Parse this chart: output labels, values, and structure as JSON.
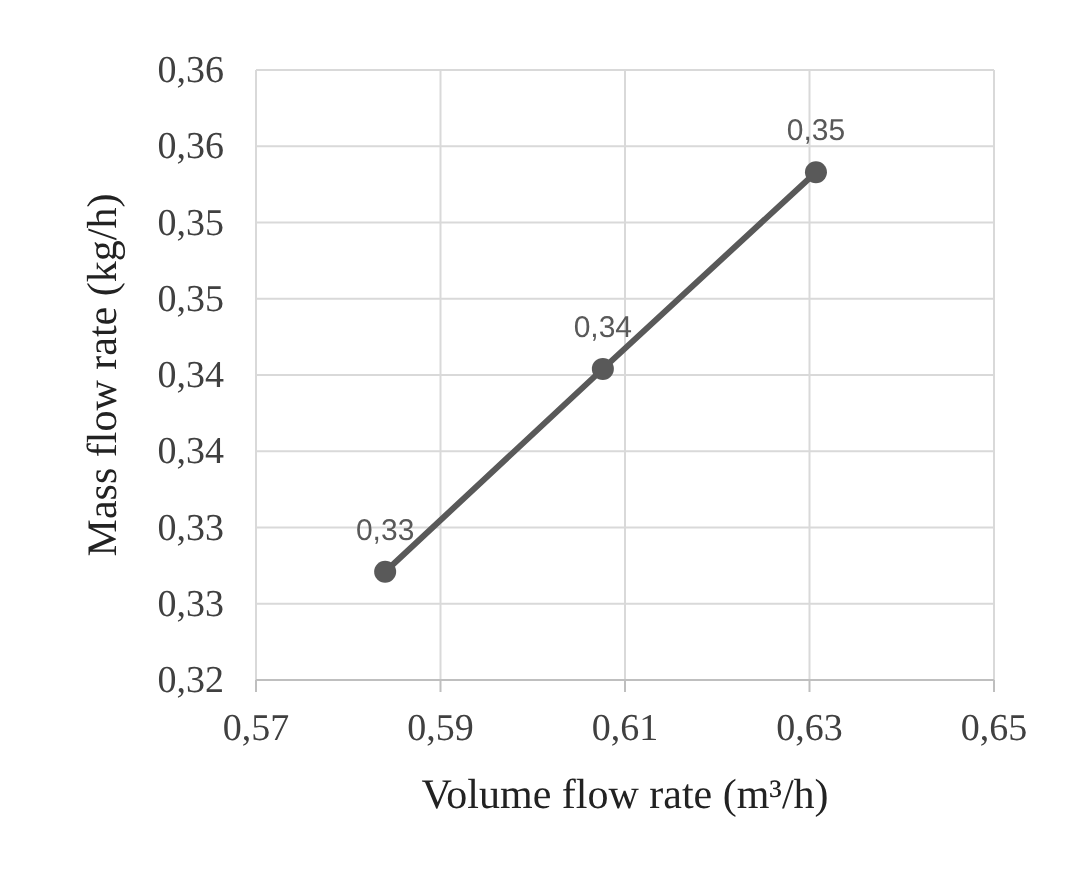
{
  "chart_data": {
    "type": "line",
    "xlabel": "Volume flow rate (m³/h)",
    "ylabel": "Mass flow rate (kg/h)",
    "x": [
      0.584,
      0.6076,
      0.6307
    ],
    "series": [
      {
        "color": "#595959",
        "values": [
          0.3271,
          0.3404,
          0.3533
        ],
        "value_labels": [
          "0,33",
          "0,34",
          "0,35"
        ]
      }
    ],
    "xlim": [
      0.57,
      0.65
    ],
    "xticks": [
      {
        "value": 0.57,
        "label": "0,57"
      },
      {
        "value": 0.59,
        "label": "0,59"
      },
      {
        "value": 0.61,
        "label": "0,61"
      },
      {
        "value": 0.63,
        "label": "0,63"
      },
      {
        "value": 0.65,
        "label": "0,65"
      }
    ],
    "ylim": [
      0.32,
      0.36
    ],
    "yticks": [
      {
        "value": 0.32,
        "label": "0,32"
      },
      {
        "value": 0.325,
        "label": "0,33"
      },
      {
        "value": 0.33,
        "label": "0,33"
      },
      {
        "value": 0.335,
        "label": "0,34"
      },
      {
        "value": 0.34,
        "label": "0,34"
      },
      {
        "value": 0.345,
        "label": "0,35"
      },
      {
        "value": 0.35,
        "label": "0,35"
      },
      {
        "value": 0.355,
        "label": "0,36"
      },
      {
        "value": 0.36,
        "label": "0,36"
      }
    ],
    "grid": true,
    "marker": "circle",
    "line_style": "solid"
  }
}
